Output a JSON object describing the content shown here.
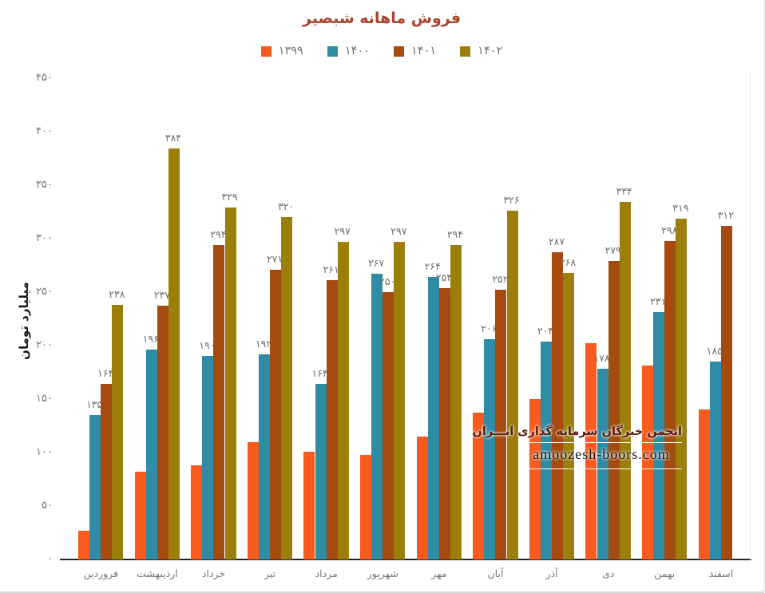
{
  "chart_data": {
    "type": "bar",
    "title": "فروش ماهانه شبصیر",
    "ylabel": "میلیارد تومان",
    "ylim": [
      0,
      450
    ],
    "ytick_step": 50,
    "grid": "off",
    "legend_position": "top",
    "yticks": [
      {
        "value": 0,
        "label_fa": "۰"
      },
      {
        "value": 50,
        "label_fa": "۵۰"
      },
      {
        "value": 100,
        "label_fa": "۱۰۰"
      },
      {
        "value": 150,
        "label_fa": "۱۵۰"
      },
      {
        "value": 200,
        "label_fa": "۲۰۰"
      },
      {
        "value": 250,
        "label_fa": "۲۵۰"
      },
      {
        "value": 300,
        "label_fa": "۳۰۰"
      },
      {
        "value": 350,
        "label_fa": "۳۵۰"
      },
      {
        "value": 400,
        "label_fa": "۴۰۰"
      },
      {
        "value": 450,
        "label_fa": "۴۵۰"
      }
    ],
    "categories": [
      "فروردین",
      "اردیبهشت",
      "خرداد",
      "تیر",
      "مرداد",
      "شهریور",
      "مهر",
      "آبان",
      "آذر",
      "دی",
      "بهمن",
      "اسفند"
    ],
    "series": [
      {
        "name": "۱۳۹۹",
        "color": "#f95a1e",
        "values": [
          27,
          82,
          88,
          110,
          101,
          98,
          115,
          137,
          150,
          202,
          181,
          140
        ],
        "labels": [
          "",
          "",
          "",
          "",
          "",
          "",
          "",
          "",
          "",
          "",
          "",
          ""
        ]
      },
      {
        "name": "۱۴۰۰",
        "color": "#2e8ca5",
        "values": [
          135,
          196,
          190,
          192,
          164,
          267,
          264,
          206,
          204,
          178,
          231,
          185
        ],
        "labels": [
          "۱۳۵",
          "۱۹۶",
          "۱۹۰",
          "۱۹۲",
          "۱۶۴",
          "۲۶۷",
          "۲۶۴",
          "۲۰۶",
          "۲۰۴",
          "۱۷۸",
          "۲۳۱",
          "۱۸۵"
        ]
      },
      {
        "name": "۱۴۰۱",
        "color": "#a64b0f",
        "values": [
          164,
          237,
          294,
          271,
          261,
          250,
          254,
          252,
          287,
          279,
          298,
          312
        ],
        "labels": [
          "۱۶۴",
          "۲۳۷",
          "۲۹۴",
          "۲۷۱",
          "۲۶۱",
          "۲۵۰",
          "۲۵۴",
          "۲۵۲",
          "۲۸۷",
          "۲۷۹",
          "۲۹۸",
          "۳۱۲"
        ]
      },
      {
        "name": "۱۴۰۲",
        "color": "#9c7e0b",
        "values": [
          238,
          384,
          329,
          320,
          297,
          297,
          294,
          326,
          268,
          334,
          319,
          null
        ],
        "labels": [
          "۲۳۸",
          "۳۸۴",
          "۳۲۹",
          "۳۲۰",
          "۲۹۷",
          "۲۹۷",
          "۲۹۴",
          "۳۲۶",
          "۲۶۸",
          "۳۳۴",
          "۳۱۹",
          ""
        ]
      }
    ]
  },
  "watermark": {
    "line1": "انجمن خبرگان سرمایه گذاری ایـــران",
    "line2": "amoozesh-boors.com"
  }
}
